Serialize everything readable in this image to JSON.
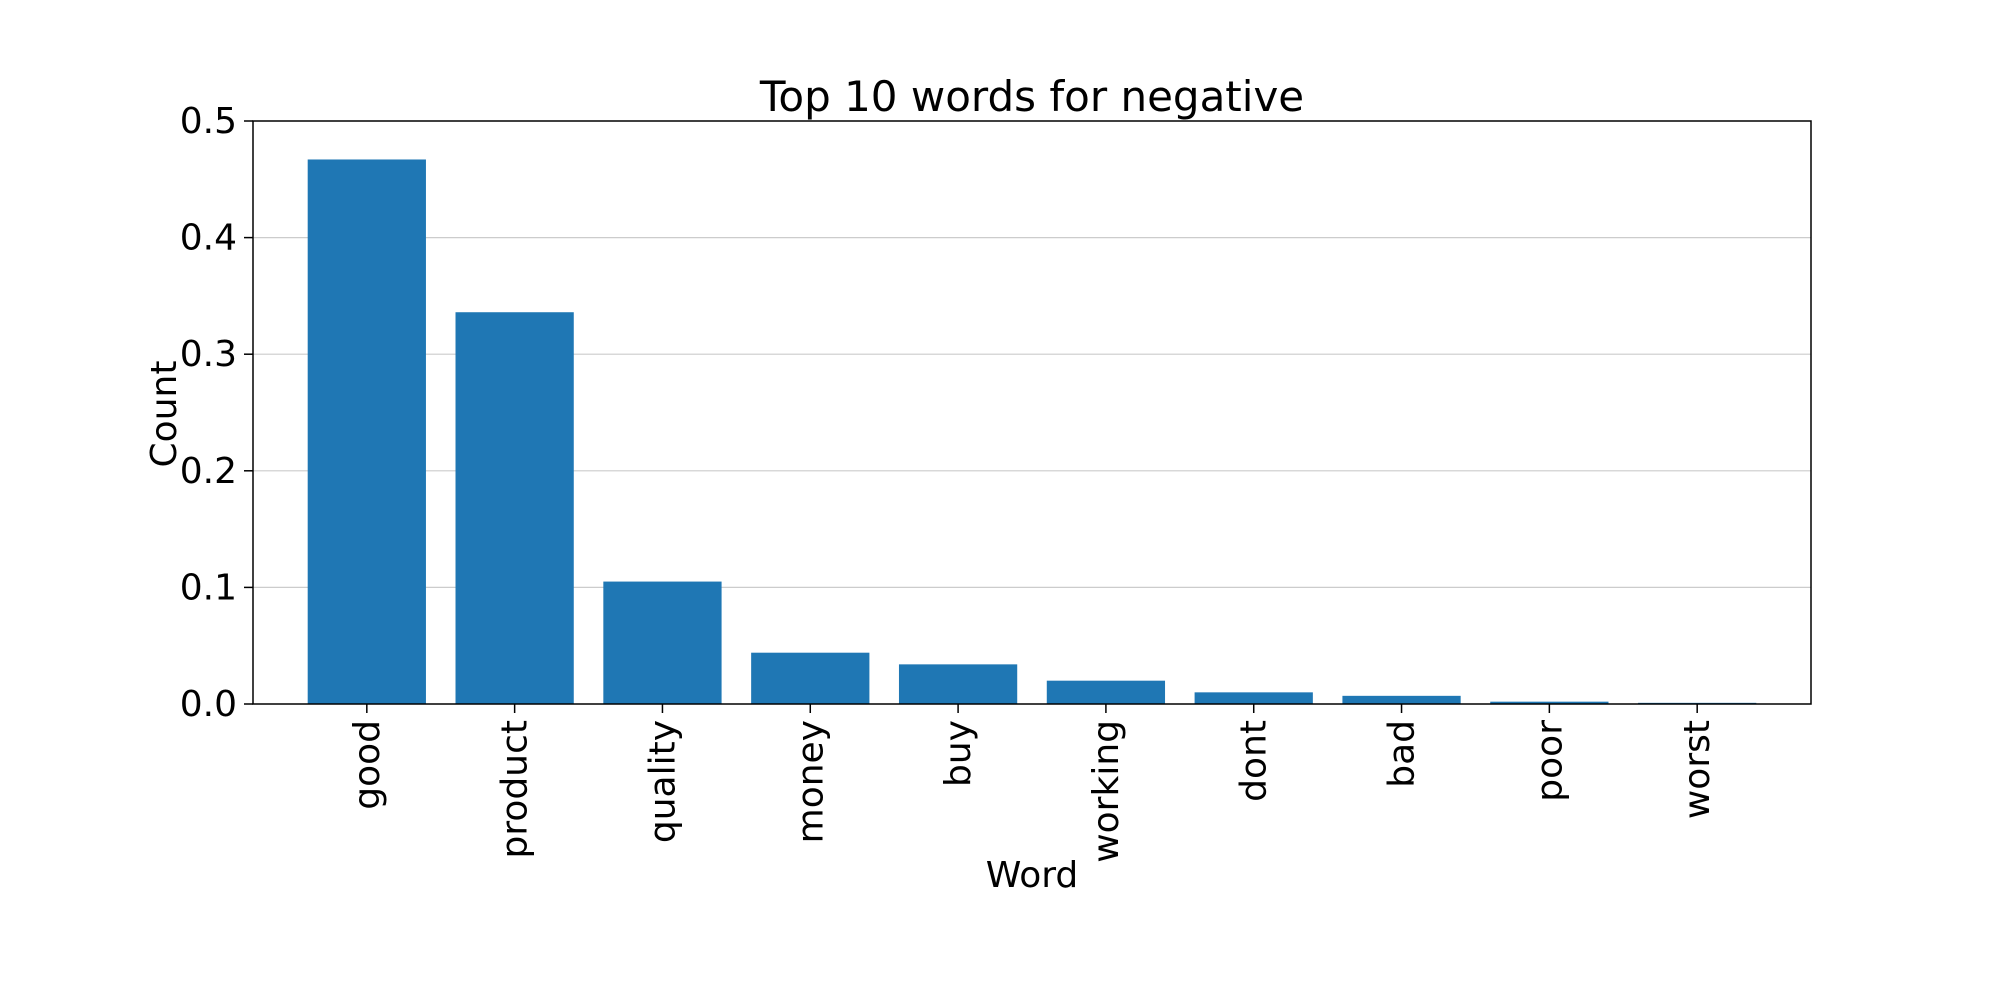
{
  "chart_data": {
    "type": "bar",
    "title": "Top 10 words for negative",
    "xlabel": "Word",
    "ylabel": "Count",
    "categories": [
      "good",
      "product",
      "quality",
      "money",
      "buy",
      "working",
      "dont",
      "bad",
      "poor",
      "worst"
    ],
    "values": [
      0.467,
      0.336,
      0.105,
      0.044,
      0.034,
      0.02,
      0.01,
      0.007,
      0.002,
      0.001
    ],
    "ylim": [
      0,
      0.5
    ],
    "yticks": [
      "0.0",
      "0.1",
      "0.2",
      "0.3",
      "0.4",
      "0.5"
    ],
    "ytick_values": [
      0,
      0.1,
      0.2,
      0.3,
      0.4,
      0.5
    ],
    "grid": "horizontal",
    "legend": "none",
    "bar_color": "#1f77b4",
    "grid_color": "#cccccc"
  }
}
